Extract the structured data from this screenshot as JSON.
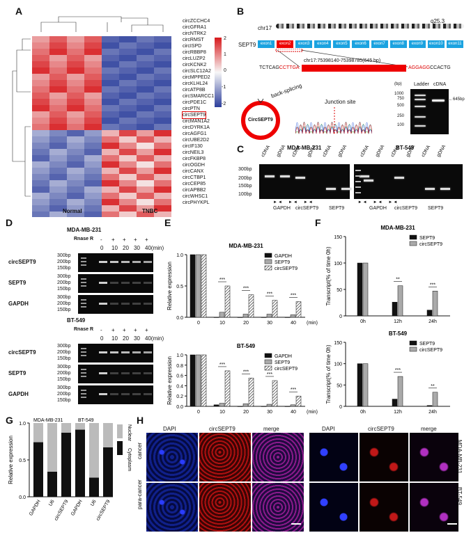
{
  "panels": {
    "A": {
      "label": "A",
      "genes": [
        "circZCCHC4",
        "circGFRA1",
        "circNTRK2",
        "circRMST",
        "circISPD",
        "circRBBP8",
        "circLUZP2",
        "circKCNK2",
        "circSLC12A2",
        "circMPPED2",
        "circKLHL24",
        "circATP8B",
        "circSMARCC1",
        "circPDE1C",
        "circPTN",
        "circSEPT9",
        "circMAN1A2",
        "circDYRK1A",
        "circAGFG1",
        "circUBE2D2",
        "circIF130",
        "circNEIL3",
        "circFKBP8",
        "circOGDH",
        "circCANX",
        "circCTBP1",
        "circCEP85",
        "circAPBB2",
        "circWHSC1",
        "circPHYKPL"
      ],
      "groups": [
        "Normal",
        "TNBC"
      ],
      "legend_ticks": [
        "2",
        "1",
        "0",
        "-1",
        "-2"
      ],
      "colors": {
        "high": "#d7191c",
        "mid": "#f7f7f7",
        "low": "#2c3e9c"
      }
    },
    "B": {
      "label": "B",
      "chrom": "chr17",
      "band": "q25.3",
      "gene": "SEPT9",
      "exons": [
        "exon1",
        "exon2",
        "exon3",
        "exon4",
        "exon5",
        "exon6",
        "exon7",
        "exon8",
        "exon9",
        "exon10",
        "exon11"
      ],
      "seq_left": "TCTCAG",
      "seq_left_red": "CCTTGA",
      "coord": "chr17:75398140-75398785(645 bp)",
      "seq_right_red": "AGGAGG",
      "seq_right": "CCACTG",
      "back_splicing": "back-splicing",
      "junction": "Junction site",
      "circ_name": "CircSEPT9",
      "gel_header": [
        "(bp)",
        "Ladder",
        "cDNA"
      ],
      "gel_marks": [
        "1000",
        "750",
        "500",
        "250",
        "100"
      ],
      "product": "645bp"
    },
    "C": {
      "label": "C",
      "cells": [
        "MDA-MB-231",
        "BT-549"
      ],
      "lanes": [
        "cDNA",
        "gDNA",
        "cDNA",
        "gDNA",
        "cDNA",
        "gDNA"
      ],
      "markers": [
        "300bp",
        "200bp",
        "150bp",
        "100bp"
      ],
      "targets": [
        "GAPDH",
        "circSEPT9",
        "SEPT9"
      ]
    },
    "D": {
      "label": "D",
      "cells": [
        "MDA-MB-231",
        "BT-549"
      ],
      "rnase": "Rnase R",
      "signs": [
        "-",
        "+",
        "+",
        "+",
        "+"
      ],
      "times": [
        "0",
        "10",
        "20",
        "30",
        "40(min)"
      ],
      "rows": [
        "circSEPT9",
        "SEPT9",
        "GAPDH"
      ],
      "markers": [
        "300bp",
        "200bp",
        "150bp"
      ]
    },
    "E": {
      "label": "E"
    },
    "F": {
      "label": "F"
    },
    "G": {
      "label": "G"
    },
    "H": {
      "label": "H",
      "cols": [
        "DAPI",
        "circSEPT9",
        "merge"
      ],
      "rows_left": [
        "cancer",
        "para-cancer"
      ],
      "rows_right": [
        "MDA-MB-231",
        "BT-549"
      ]
    }
  },
  "chart_data": [
    {
      "panel": "E",
      "type": "bar",
      "title": "MDA-MB-231",
      "ylabel": "Relative expression",
      "xlabel": "(min)",
      "categories": [
        "0",
        "10",
        "20",
        "30",
        "40"
      ],
      "ylim": [
        0,
        1.0
      ],
      "yticks": [
        "0.0",
        "0.5",
        "1.0"
      ],
      "series": [
        {
          "name": "GAPDH",
          "values": [
            1.0,
            0.0,
            0.0,
            0.0,
            0.0
          ]
        },
        {
          "name": "SEPT9",
          "values": [
            1.0,
            0.08,
            0.05,
            0.05,
            0.04
          ]
        },
        {
          "name": "circSEPT9",
          "values": [
            1.0,
            0.5,
            0.36,
            0.27,
            0.25
          ]
        }
      ],
      "annotations": [
        "***",
        "***",
        "***",
        "***"
      ]
    },
    {
      "panel": "E",
      "type": "bar",
      "title": "BT-549",
      "ylabel": "Relative expression",
      "xlabel": "(min)",
      "categories": [
        "0",
        "10",
        "20",
        "30",
        "40"
      ],
      "ylim": [
        0,
        1.0
      ],
      "yticks": [
        "0.0",
        "0.2",
        "0.4",
        "0.6",
        "0.8",
        "1.0"
      ],
      "series": [
        {
          "name": "GAPDH",
          "values": [
            1.0,
            0.03,
            0.0,
            0.0,
            0.0
          ]
        },
        {
          "name": "SEPT9",
          "values": [
            1.0,
            0.06,
            0.05,
            0.04,
            0.03
          ]
        },
        {
          "name": "circSEPT9",
          "values": [
            1.0,
            0.69,
            0.55,
            0.5,
            0.2
          ]
        }
      ],
      "annotations": [
        "***",
        "***",
        "***",
        "***"
      ]
    },
    {
      "panel": "F",
      "type": "bar",
      "title": "MDA-MB-231",
      "ylabel": "Transcript(% of time 0h)",
      "categories": [
        "0h",
        "12h",
        "24h"
      ],
      "ylim": [
        0,
        150
      ],
      "yticks": [
        "0",
        "50",
        "100",
        "150"
      ],
      "series": [
        {
          "name": "SEPT9",
          "values": [
            100,
            26,
            11
          ]
        },
        {
          "name": "circSEPT9",
          "values": [
            100,
            57,
            47
          ]
        }
      ],
      "annotations": [
        "**",
        "***"
      ]
    },
    {
      "panel": "F",
      "type": "bar",
      "title": "BT-549",
      "ylabel": "Transcript(% of time 0h)",
      "categories": [
        "0h",
        "12h",
        "24h"
      ],
      "ylim": [
        0,
        150
      ],
      "yticks": [
        "0",
        "50",
        "100",
        "150"
      ],
      "series": [
        {
          "name": "SEPT9",
          "values": [
            100,
            17,
            2
          ]
        },
        {
          "name": "circSEPT9",
          "values": [
            100,
            70,
            33
          ]
        }
      ],
      "annotations": [
        "***",
        "**"
      ]
    },
    {
      "panel": "G",
      "type": "bar",
      "ylabel": "Relative expression",
      "groups": [
        "MDA-MB-231",
        "BT-549"
      ],
      "categories": [
        "GAPDH",
        "U6",
        "circSEPT9",
        "GAPDH",
        "U6",
        "circSEPT9"
      ],
      "ylim": [
        0,
        1.0
      ],
      "yticks": [
        "0.0",
        "0.5",
        "1.0"
      ],
      "series": [
        {
          "name": "Nuclear",
          "values": [
            0.26,
            0.66,
            0.13,
            0.09,
            0.74,
            0.33
          ]
        },
        {
          "name": "Cytoplasm",
          "values": [
            0.74,
            0.34,
            0.87,
            0.91,
            0.26,
            0.67
          ]
        }
      ]
    }
  ]
}
